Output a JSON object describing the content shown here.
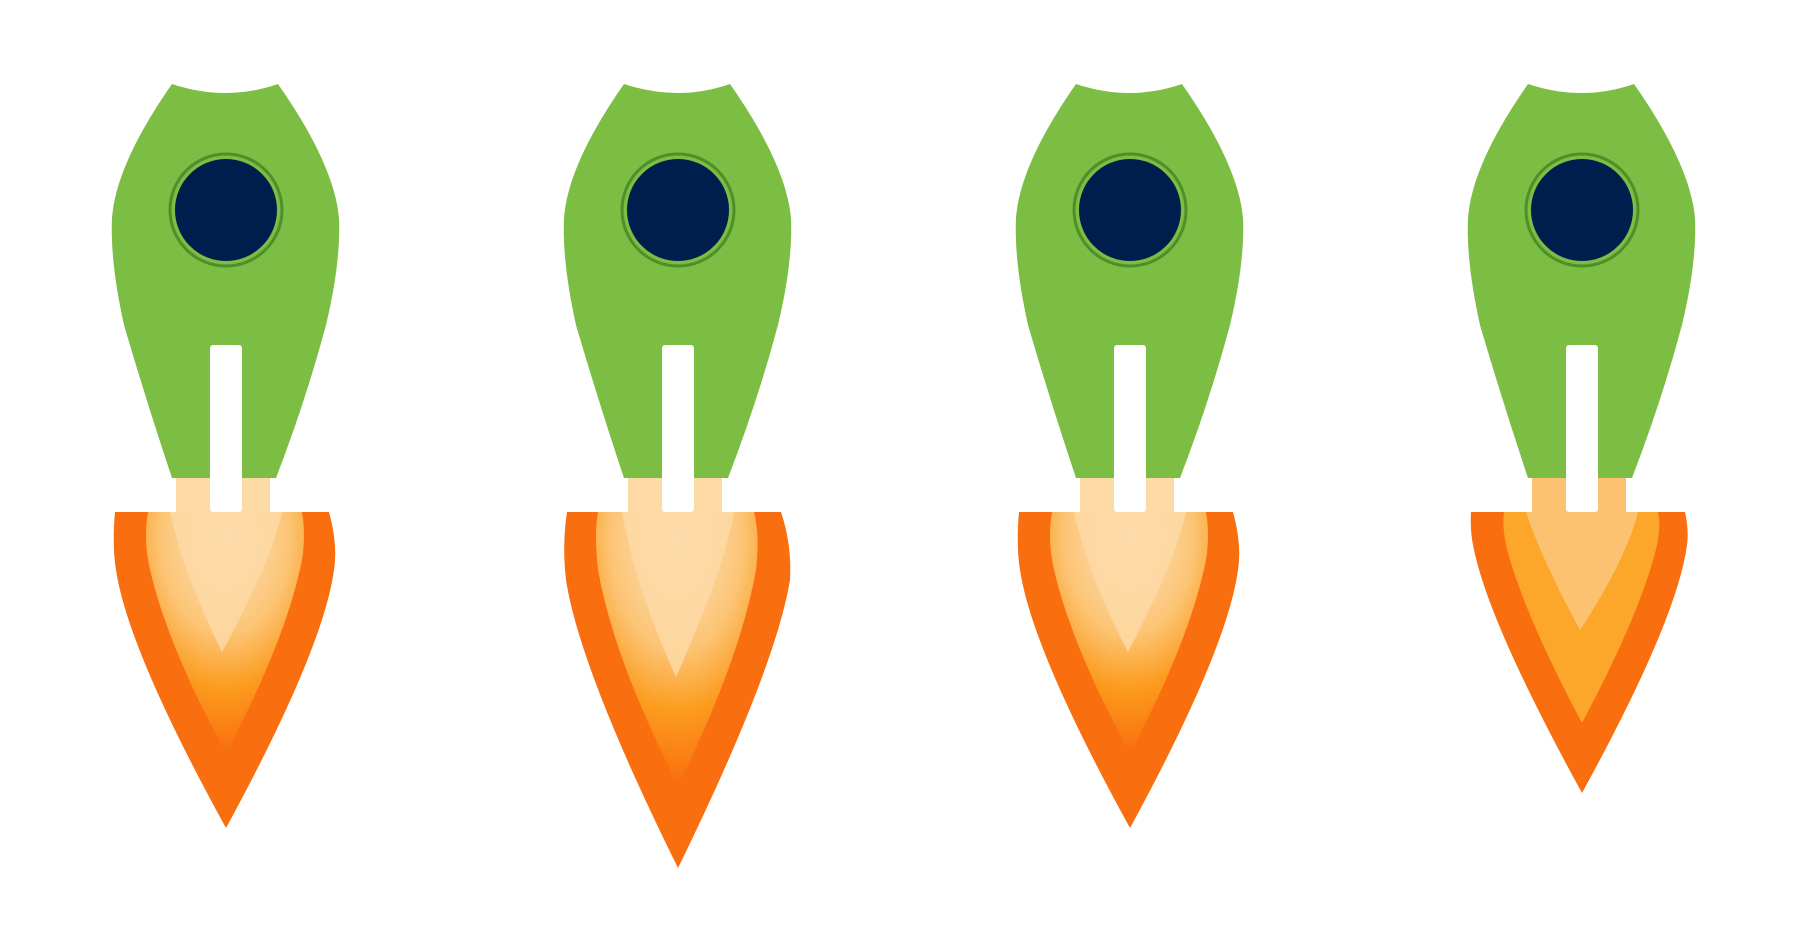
{
  "colors": {
    "body": "#7CBD43",
    "porthole_fill": "#001E4D",
    "porthole_ring": "#4E8F2A",
    "stripe": "#ffffff",
    "flame_outer": "#F96E0E",
    "flame_mid": "#FC9C1E",
    "flame_inner": "#FDD9A6",
    "background": "#ffffff"
  },
  "rockets": [
    {
      "name": "rocket-1",
      "icon": "rocket-icon"
    },
    {
      "name": "rocket-2",
      "icon": "rocket-icon"
    },
    {
      "name": "rocket-3",
      "icon": "rocket-icon"
    },
    {
      "name": "rocket-4",
      "icon": "rocket-icon"
    }
  ]
}
